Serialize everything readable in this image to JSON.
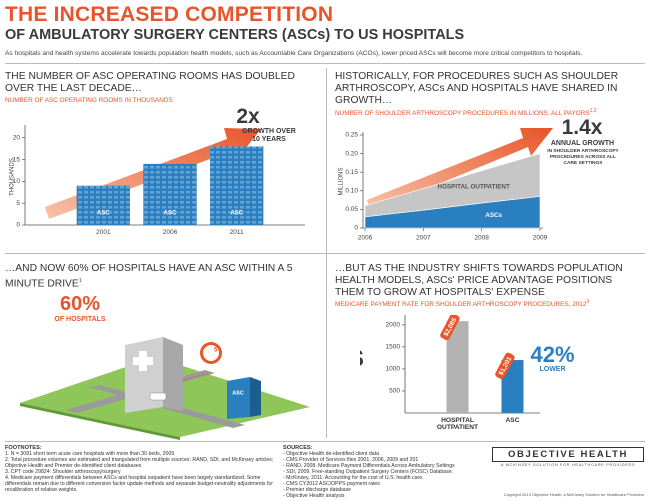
{
  "header": {
    "title": "THE INCREASED COMPETITION",
    "subtitle": "OF AMBULATORY SURGERY CENTERS (ASCs) TO US HOSPITALS",
    "intro": "As hospitals and health systems accelerate towards population health models, such as Accountable Care Organizations (ACOs), lower priced ASCs will become more critical competitors to hospitals."
  },
  "panels": [
    {
      "title": "THE NUMBER OF ASC OPERATING ROOMS HAS DOUBLED OVER THE LAST DECADE…",
      "subtitle": "NUMBER OF ASC OPERATING ROOMS IN THOUSANDS"
    },
    {
      "title": "HISTORICALLY, FOR PROCEDURES SUCH AS SHOULDER ARTHROSCOPY, ASCs AND HOSPITALS HAVE SHARED IN GROWTH…",
      "subtitle": "NUMBER OF SHOULDER ARTHROSCOPY PROCEDURES IN MILLIONS, ALL PAYORS",
      "note": "1,2"
    },
    {
      "title": "…AND NOW 60% OF HOSPITALS HAVE AN ASC WITHIN A 5 MINUTE DRIVE",
      "note": "1",
      "stat": "60%",
      "stat_label": "OF HOSPITALS",
      "building_label": "ASC",
      "clock_label": "5"
    },
    {
      "title": "…BUT AS THE INDUSTRY SHIFTS TOWARDS POPULATION HEALTH MODELS, ASCs' PRICE ADVANTAGE POSITIONS THEM TO GROW AT HOSPITALS' EXPENSE",
      "subtitle": "MEDICARE PAYMENT RATE FOR SHOULDER ARTHROSCOPY PROCEDURES, 2012",
      "note": "3"
    }
  ],
  "chart_data": [
    {
      "type": "bar",
      "categories": [
        "2001",
        "2006",
        "2011"
      ],
      "values": [
        9,
        14,
        18
      ],
      "bar_labels": [
        "ASC",
        "ASC",
        "ASC"
      ],
      "color": "#2a7fc1",
      "ylabel": "THOUSANDS",
      "ylim": [
        0,
        22
      ],
      "yticks": [
        0,
        5,
        10,
        15,
        20
      ],
      "annotation": "2x",
      "annotation_label": "GROWTH OVER 10 YEARS"
    },
    {
      "type": "area",
      "stacked": true,
      "x": [
        2006,
        2007,
        2008,
        2009
      ],
      "series": [
        {
          "name": "ASCs",
          "color": "#2a7fc1",
          "values": [
            0.03,
            0.048,
            0.067,
            0.085
          ]
        },
        {
          "name": "HOSPITAL OUTPATIENT",
          "color": "#c6c6c6",
          "values": [
            0.03,
            0.058,
            0.087,
            0.115
          ]
        }
      ],
      "xlim": [
        2006,
        2009
      ],
      "xticks": [
        2006,
        2007,
        2008,
        2009
      ],
      "ylabel": "MILLIONS",
      "ylim": [
        0,
        0.25
      ],
      "yticks": [
        0,
        0.05,
        {
          "value": 0.1,
          "label": "0.10"
        },
        0.15,
        {
          "value": 0.2,
          "label": "0.20"
        },
        0.25
      ],
      "annotation": "1.4x",
      "annotation_label": "ANNUAL GROWTH",
      "annotation_detail": "IN SHOULDER ARTHROSCOPY PROCEDURES ACROSS ALL CARE SETTINGS"
    },
    {
      "type": "bar",
      "categories": [
        "HOSPITAL OUTPATIENT",
        "ASC"
      ],
      "values": [
        2085,
        1201
      ],
      "value_labels": [
        "$2,085",
        "$1,201"
      ],
      "colors": [
        "#b3b3b3",
        "#2a7fc1"
      ],
      "ylabel": "$",
      "ylim": [
        0,
        2200
      ],
      "yticks": [
        500,
        1000,
        1500,
        2000
      ],
      "annotation": "42%",
      "annotation_label": "LOWER"
    }
  ],
  "footnotes": {
    "heading": "FOOTNOTES:",
    "items": [
      "1. N = 3081 short term acute care hospitals with more than 30 beds, 2009",
      "2. Total procedure volumes are estimated and triangulated from multiple sources: RAND, SDI, and McKinsey articles; Objective Health and Premier de-identified client databases",
      "3. CPT code 29824: Shoulder arthroscopy/surgery",
      "4. Medicare payment differentials between ASCs and hospital outpatient have been largely standardized. Some differentials remain due to different conversion factor update methods and separate budget-neutrality adjustments for recalibration of relative weights."
    ]
  },
  "sources": {
    "heading": "SOURCES:",
    "items": [
      "- Objective Health de-identified client data",
      "- CMS Provider of Services files 2001, 2006, 2009 and 201",
      "- RAND, 2008. Medicare Payment Differentials Across Ambulatory Settings",
      "- SDI, 2009. Free-standing Outpatient Surgery Centers (FOSC) Database.",
      "- McKinsey, 2011. Accounting for the cost of U.S. health care.",
      "- CMS CY2012 ASC/OPPS payment rates",
      "- Premier discharge database",
      "- Objective Health analysis"
    ]
  },
  "logo": {
    "name": "OBJECTIVE HEALTH",
    "tagline": "A MCKINSEY SOLUTION FOR HEALTHCARE PROVIDERS"
  },
  "copyright": "Copyright 2013 Objective Health, a McKinsey Solution for Healthcare Providers"
}
